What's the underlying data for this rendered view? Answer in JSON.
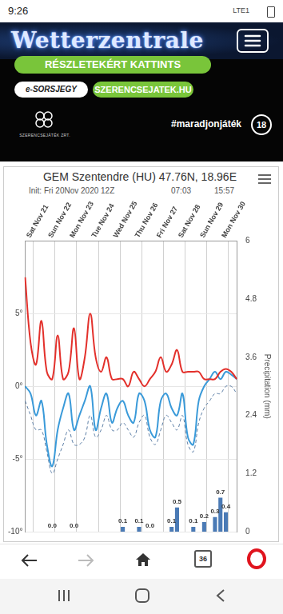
{
  "status_bar": {
    "time": "9:26",
    "network": "LTE1"
  },
  "header": {
    "logo": "Wetterzentrale"
  },
  "ad": {
    "button": "RÉSZLETEKÉRT KATTINTS",
    "badge": "e-SORSJEGY",
    "site": "SZERENCSEJATEK.HU",
    "brand": "SZERENCSEJÁTÉK ZRT.",
    "hashtag": "#maradjonjáték",
    "age": "18"
  },
  "chart_data": {
    "type": "line",
    "title": "GEM Szentendre (HU) 47.76N, 18.96E",
    "subtitle": "Init: Fri 20Nov 2020 12Z",
    "annotations": [
      "07:03",
      "15:57"
    ],
    "y2_label": "Precipitation (mm)",
    "categories": [
      null,
      null,
      "Sat Nov 21",
      null,
      null,
      null,
      "Sun Nov 22",
      null,
      null,
      null,
      "Mon Nov 23",
      null,
      null,
      null,
      "Tue Nov 24",
      null,
      null,
      null,
      "Wed Nov 25",
      null,
      null,
      null,
      "Thu Nov 26",
      null,
      null,
      null,
      "Fri Nov 27",
      null,
      null,
      null,
      "Sat Nov 28",
      null,
      null,
      null,
      "Sun Nov 29",
      null,
      null,
      null,
      "Mon Nov 30",
      null
    ],
    "series": [
      {
        "color": "#e3302b",
        "values": [
          7.5,
          3,
          1.5,
          4.5,
          1,
          0.5,
          3.5,
          0.5,
          1,
          4,
          0.5,
          2,
          5,
          2,
          1,
          2,
          0.5,
          0.5,
          0.5,
          0,
          1,
          0.5,
          0,
          0.5,
          1,
          2,
          1,
          1.5,
          2.5,
          1,
          1,
          1,
          1,
          0.5,
          0.5,
          0.5,
          1,
          1.2,
          1,
          0.5
        ]
      },
      {
        "color": "#3a9ad9",
        "values": [
          0,
          -0.5,
          -2,
          -1,
          -4,
          -5.5,
          -3,
          -1.5,
          -0.5,
          -3,
          -2,
          -1,
          0,
          -3,
          -1.5,
          -0.5,
          -2.5,
          -1.5,
          -1,
          -2,
          -2.5,
          -0.5,
          -1,
          -3,
          -3.5,
          -1,
          -0.5,
          -1.5,
          -2,
          -0.5,
          -3.5,
          -4,
          -1,
          0,
          0.5,
          1,
          0.5,
          1,
          0.8,
          0.5
        ]
      },
      {
        "color": "#5d7fa6",
        "line_style": "dashed",
        "values": [
          -1,
          -2,
          -3,
          -3,
          -4.5,
          -6,
          -5,
          -4,
          -3,
          -4,
          -4,
          -3.5,
          -2,
          -3.5,
          -3,
          -2,
          -3,
          -3,
          -2.5,
          -3,
          -3.5,
          -2.5,
          -2,
          -3.5,
          -4,
          -3,
          -2,
          -2.5,
          -3,
          -2,
          -4,
          -4.5,
          -2.5,
          -1.5,
          -1,
          -0.5,
          -0.5,
          0,
          0,
          -0.5
        ]
      },
      {
        "type": "bar",
        "axis": "y2",
        "color": "#4a7ab5",
        "values": [
          null,
          null,
          null,
          null,
          null,
          0,
          null,
          null,
          null,
          0,
          null,
          null,
          null,
          null,
          null,
          null,
          null,
          null,
          0.1,
          null,
          null,
          0.1,
          null,
          0,
          null,
          null,
          null,
          0.1,
          0.5,
          null,
          null,
          0.1,
          null,
          0.2,
          null,
          0.3,
          0.7,
          0.4,
          null,
          null
        ],
        "value_labels": [
          null,
          null,
          null,
          null,
          null,
          "0.0",
          null,
          null,
          null,
          "0.0",
          null,
          null,
          null,
          null,
          null,
          null,
          null,
          null,
          "0.1",
          null,
          null,
          "0.1",
          null,
          "0.0",
          null,
          null,
          null,
          "0.1",
          "0.5",
          null,
          null,
          "0.1",
          null,
          "0.2",
          null,
          "0.3",
          "0.7",
          "0.4",
          null,
          null
        ]
      }
    ],
    "ylim": [
      -10,
      10
    ],
    "yticks": [
      {
        "value": -10,
        "label": "-10°"
      },
      {
        "value": -5,
        "label": "-5°"
      },
      {
        "value": 0,
        "label": "0°"
      },
      {
        "value": 5,
        "label": "5°"
      }
    ],
    "y2lim": [
      0,
      6
    ],
    "y2ticks": [
      0,
      1.2,
      2.4,
      3.6,
      4.8,
      6
    ],
    "grid": true,
    "data_labels": true
  },
  "browser_bar": {
    "tabs": "36"
  }
}
